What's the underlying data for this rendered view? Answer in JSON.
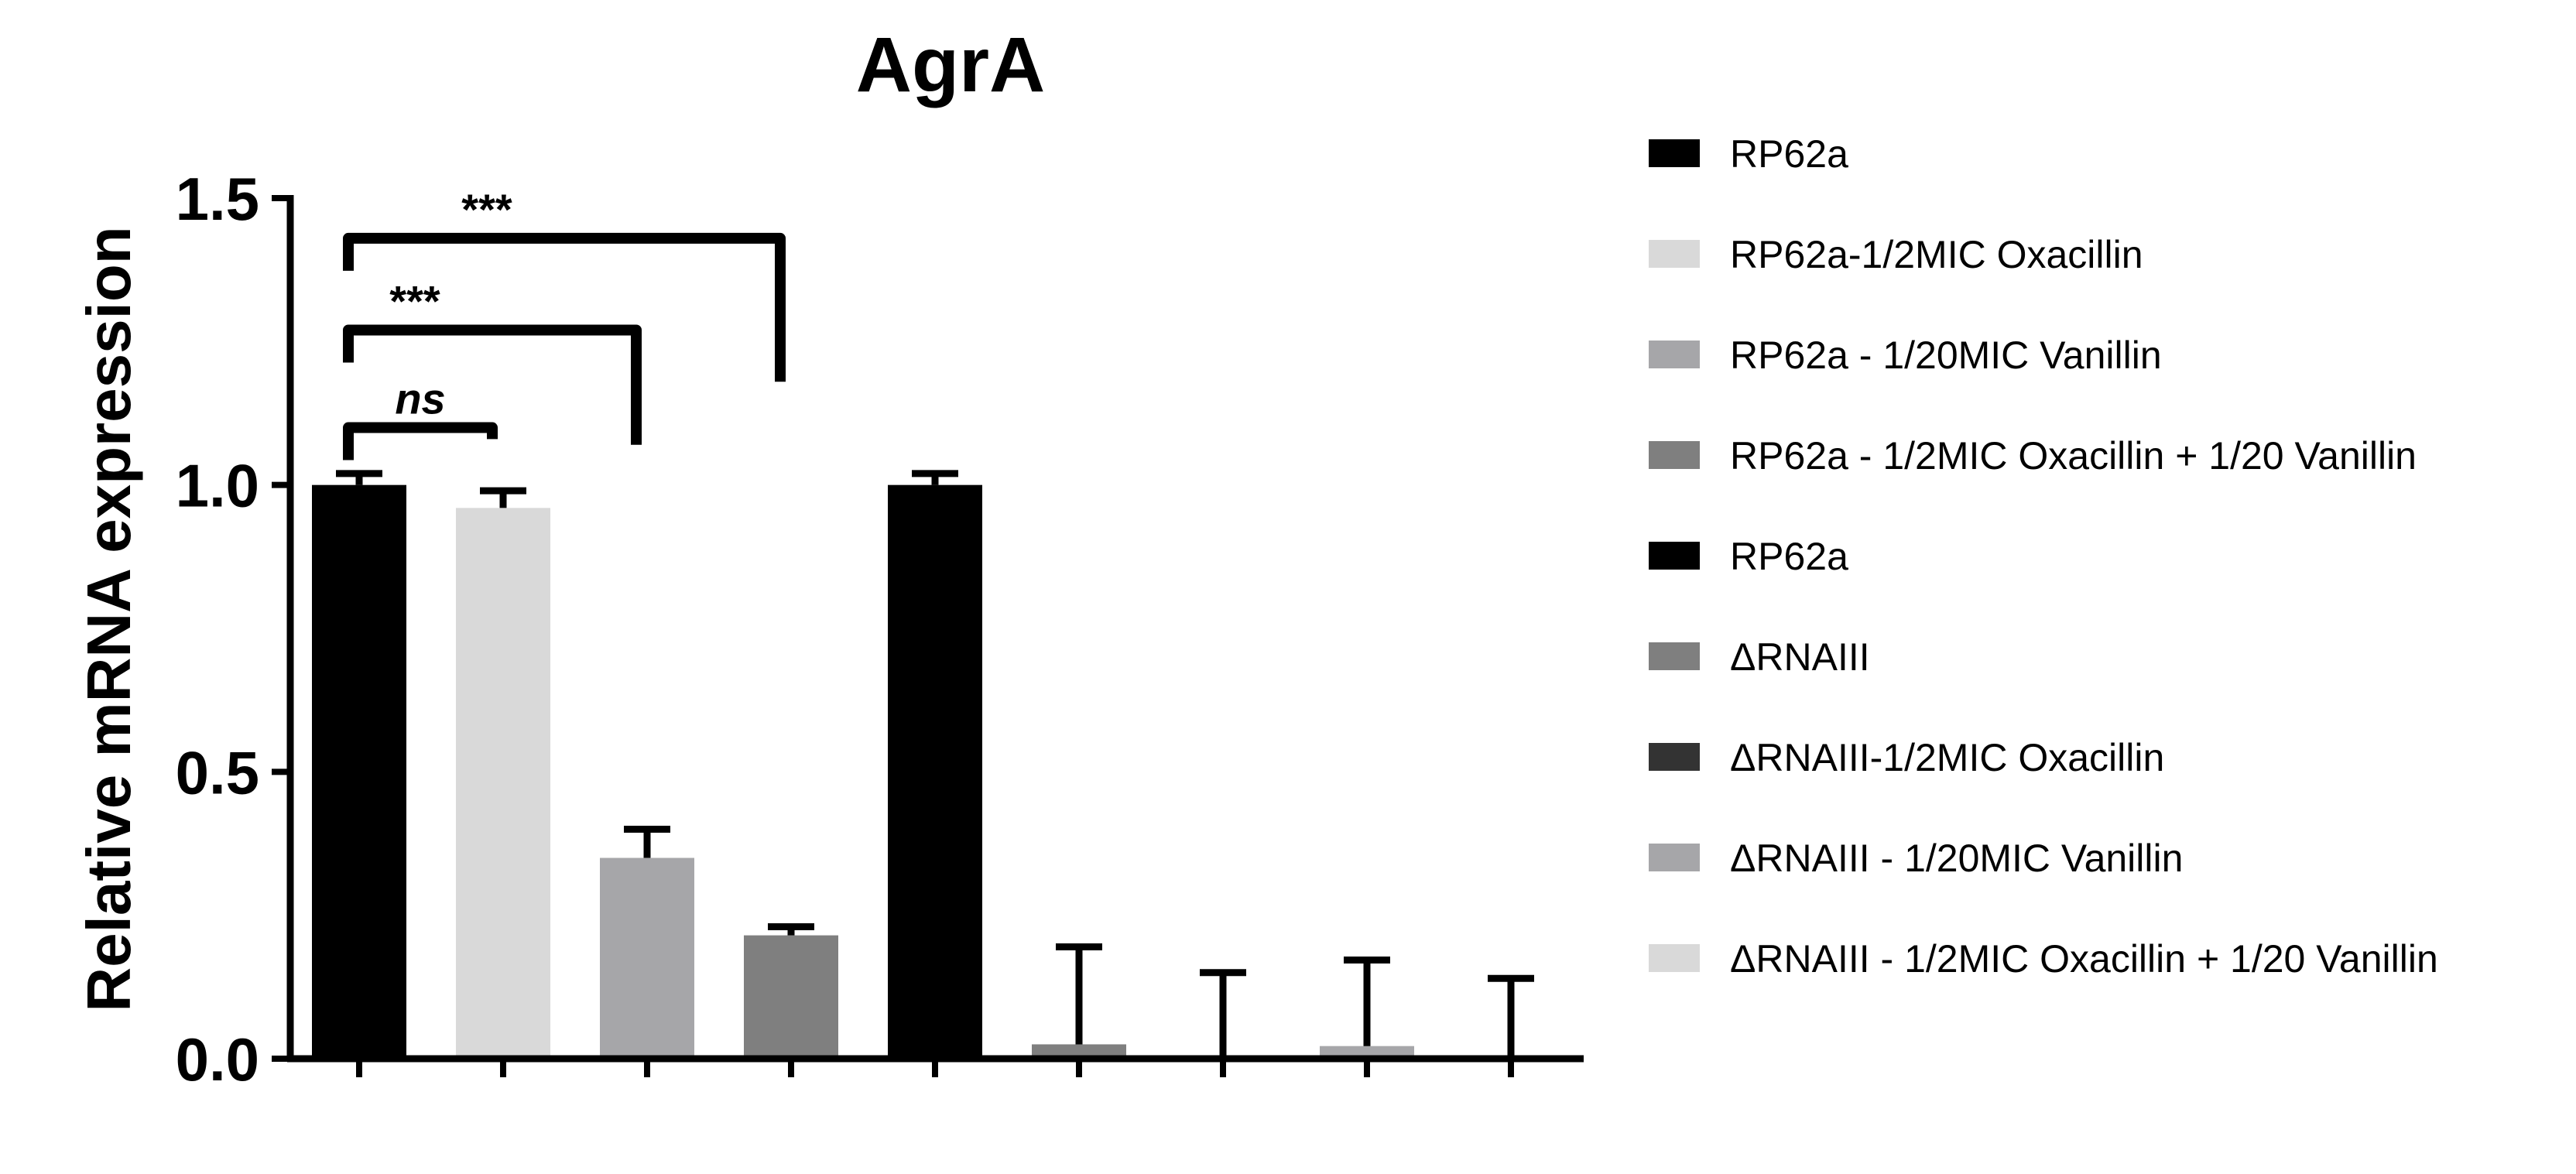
{
  "chart_data": {
    "type": "bar",
    "title": "AgrA",
    "xlabel": "",
    "ylabel": "Relative mRNA expression",
    "ylim": [
      0,
      1.5
    ],
    "yticks": [
      0.0,
      0.5,
      1.0,
      1.5
    ],
    "ytick_labels": [
      "0.0",
      "0.5",
      "1.0",
      "1.5"
    ],
    "grid": false,
    "legend_position": "right",
    "categories": [
      "RP62a",
      "RP62a-1/2MIC Oxacillin",
      "RP62a - 1/20MIC Vanillin",
      "RP62a - 1/2MIC Oxacillin + 1/20 Vanillin",
      "RP62a",
      "ΔRNAIII",
      "ΔRNAIII-1/2MIC Oxacillin",
      "ΔRNAIII - 1/20MIC Vanillin",
      "ΔRNAIII - 1/2MIC Oxacillin + 1/20 Vanillin"
    ],
    "colors": [
      "#000000",
      "#d9d9d9",
      "#a6a6a9",
      "#7f7f7f",
      "#000000",
      "#7f7f7f",
      "#333333",
      "#a6a6a9",
      "#d9d9d9"
    ],
    "values": [
      1.0,
      0.96,
      0.35,
      0.215,
      1.0,
      0.025,
      0.0,
      0.022,
      0.0
    ],
    "errors": [
      0.02,
      0.03,
      0.05,
      0.015,
      0.02,
      0.17,
      0.15,
      0.15,
      0.14
    ],
    "significance": [
      {
        "from": 0,
        "to": 1,
        "label": "ns",
        "italic": true
      },
      {
        "from": 0,
        "to": 2,
        "label": "***",
        "italic": false
      },
      {
        "from": 0,
        "to": 3,
        "label": "***",
        "italic": false
      }
    ]
  }
}
